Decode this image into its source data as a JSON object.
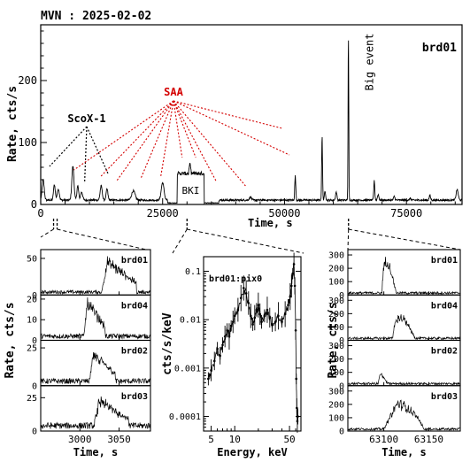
{
  "chart_data": {
    "title": "MVN : 2025-02-02",
    "main": {
      "type": "line",
      "detector": "brd01",
      "xlabel": "Time, s",
      "ylabel": "Rate, cts/s",
      "xlim": [
        0,
        86400
      ],
      "ylim": [
        0,
        290
      ],
      "xticks": [
        0,
        25000,
        50000,
        75000
      ],
      "yticks": [
        0,
        100,
        200
      ],
      "baseline": 7,
      "spikes": [
        {
          "t": 500,
          "v": 40,
          "w": 300
        },
        {
          "t": 2800,
          "v": 32,
          "w": 250
        },
        {
          "t": 3600,
          "v": 25,
          "w": 300
        },
        {
          "t": 6600,
          "v": 62,
          "w": 300
        },
        {
          "t": 7600,
          "v": 30,
          "w": 250
        },
        {
          "t": 8400,
          "v": 20,
          "w": 300
        },
        {
          "t": 12400,
          "v": 30,
          "w": 300
        },
        {
          "t": 13600,
          "v": 25,
          "w": 250
        },
        {
          "t": 19000,
          "v": 22,
          "w": 500
        },
        {
          "t": 25000,
          "v": 35,
          "w": 400
        },
        {
          "t": 43000,
          "v": 12,
          "w": 300
        },
        {
          "t": 52200,
          "v": 46,
          "w": 150
        },
        {
          "t": 57700,
          "v": 112,
          "w": 120
        },
        {
          "t": 58300,
          "v": 20,
          "w": 200
        },
        {
          "t": 60600,
          "v": 20,
          "w": 200
        },
        {
          "t": 63100,
          "v": 275,
          "w": 100
        },
        {
          "t": 68400,
          "v": 38,
          "w": 150
        },
        {
          "t": 69200,
          "v": 16,
          "w": 200
        },
        {
          "t": 72500,
          "v": 13,
          "w": 200
        },
        {
          "t": 75800,
          "v": 10,
          "w": 200
        },
        {
          "t": 79800,
          "v": 14,
          "w": 200
        },
        {
          "t": 85400,
          "v": 24,
          "w": 300
        }
      ],
      "bki": {
        "start": 28000,
        "end": 33500,
        "level": 50,
        "top": 55,
        "label": "BKI"
      },
      "annotations": [
        {
          "label": "ScoX-1",
          "targets": [
            1800,
            9000,
            13800
          ]
        },
        {
          "label": "SAA",
          "targets": [
            6800,
            12200,
            15500,
            20500,
            24600,
            29000,
            31800,
            36000,
            42000,
            49500,
            51000
          ]
        },
        {
          "label": "Big event",
          "x": 63100
        }
      ]
    },
    "zoom_left": {
      "type": "line",
      "xlabel": "Time, s",
      "ylabel": "Rate, cts/s",
      "xlim": [
        2950,
        3090
      ],
      "xticks": [
        3000,
        3050
      ],
      "panels": [
        {
          "name": "brd01",
          "ylim": [
            0,
            62
          ],
          "yticks": [
            0,
            50
          ],
          "base": 4,
          "peak": 45,
          "start": 3028,
          "end": 3072
        },
        {
          "name": "brd04",
          "ylim": [
            0,
            22
          ],
          "yticks": [
            0,
            10,
            20
          ],
          "base": 2,
          "peak": 18,
          "start": 3005,
          "end": 3032
        },
        {
          "name": "brd02",
          "ylim": [
            0,
            30
          ],
          "yticks": [
            0,
            25
          ],
          "base": 3,
          "peak": 20,
          "start": 3012,
          "end": 3045
        },
        {
          "name": "brd03",
          "ylim": [
            0,
            34
          ],
          "yticks": [
            0,
            25
          ],
          "base": 4,
          "peak": 22,
          "start": 3018,
          "end": 3062
        }
      ]
    },
    "spectrum": {
      "type": "scatter",
      "label": "brd01:pix0",
      "xlabel": "Energy, keV",
      "ylabel": "cts/s/keV",
      "xscale": "log",
      "yscale": "log",
      "xlim": [
        4,
        70
      ],
      "ylim": [
        5e-05,
        0.2
      ],
      "xticks": [
        5,
        10,
        50
      ],
      "yticks": [
        0.0001,
        0.001,
        0.01,
        0.1
      ],
      "ytick_labels": [
        "0.0001",
        "0.001",
        "0.01",
        "0.1"
      ],
      "points": [
        [
          4.6,
          0.0006
        ],
        [
          5.0,
          0.0009
        ],
        [
          5.5,
          0.0014
        ],
        [
          6.0,
          0.0025
        ],
        [
          6.5,
          0.0018
        ],
        [
          7.0,
          0.003
        ],
        [
          7.5,
          0.0045
        ],
        [
          8.0,
          0.006
        ],
        [
          8.5,
          0.0045
        ],
        [
          9.0,
          0.0075
        ],
        [
          9.5,
          0.009
        ],
        [
          10.0,
          0.012
        ],
        [
          11.0,
          0.016
        ],
        [
          12.0,
          0.028
        ],
        [
          13.0,
          0.045
        ],
        [
          14.0,
          0.035
        ],
        [
          15.0,
          0.022
        ],
        [
          16.0,
          0.012
        ],
        [
          17.0,
          0.008
        ],
        [
          18.0,
          0.011
        ],
        [
          19.0,
          0.016
        ],
        [
          20.0,
          0.02
        ],
        [
          21.0,
          0.013
        ],
        [
          22.0,
          0.009
        ],
        [
          24.0,
          0.012
        ],
        [
          26.0,
          0.016
        ],
        [
          28.0,
          0.011
        ],
        [
          30.0,
          0.008
        ],
        [
          33.0,
          0.009
        ],
        [
          36.0,
          0.012
        ],
        [
          40.0,
          0.009
        ],
        [
          44.0,
          0.013
        ],
        [
          48.0,
          0.02
        ],
        [
          51.0,
          0.03
        ],
        [
          53.0,
          0.05
        ],
        [
          55.0,
          0.09
        ],
        [
          57.0,
          0.14
        ],
        [
          58.5,
          0.05
        ],
        [
          60.0,
          0.006
        ],
        [
          61.0,
          0.0006
        ],
        [
          62.0,
          0.00015
        ],
        [
          63.0,
          8e-05
        ],
        [
          64.0,
          0.0001
        ]
      ]
    },
    "zoom_right": {
      "type": "line",
      "xlabel": "Time, s",
      "ylabel": "Rate, cts/s",
      "xlim": [
        63060,
        63185
      ],
      "xticks": [
        63100,
        63150
      ],
      "panels": [
        {
          "name": "brd01",
          "ylim": [
            0,
            340
          ],
          "yticks": [
            0,
            100,
            200,
            300
          ],
          "base": 15,
          "peak": 250,
          "start": 63098,
          "end": 63114,
          "shape": "fast"
        },
        {
          "name": "brd04",
          "ylim": [
            0,
            340
          ],
          "yticks": [
            0,
            100,
            200,
            300
          ],
          "base": 15,
          "peak": 170,
          "start": 63110,
          "end": 63135,
          "shape": "fast"
        },
        {
          "name": "brd02",
          "ylim": [
            0,
            340
          ],
          "yticks": [
            0,
            100,
            200,
            300
          ],
          "base": 15,
          "peak": 80,
          "start": 63094,
          "end": 63104,
          "shape": "fast"
        },
        {
          "name": "brd03",
          "ylim": [
            0,
            340
          ],
          "yticks": [
            0,
            100,
            200,
            300
          ],
          "base": 15,
          "peak": 210,
          "start": 63100,
          "end": 63145,
          "shape": "broad"
        }
      ]
    }
  }
}
